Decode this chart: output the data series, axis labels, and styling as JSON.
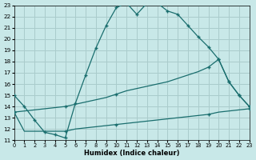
{
  "xlabel": "Humidex (Indice chaleur)",
  "bg_color": "#c8e8e8",
  "grid_color": "#aacccc",
  "line_color": "#1a6e6e",
  "xlim": [
    0,
    23
  ],
  "ylim": [
    11,
    23
  ],
  "xticks": [
    0,
    1,
    2,
    3,
    4,
    5,
    6,
    7,
    8,
    9,
    10,
    11,
    12,
    13,
    14,
    15,
    16,
    17,
    18,
    19,
    20,
    21,
    22,
    23
  ],
  "yticks": [
    11,
    12,
    13,
    14,
    15,
    16,
    17,
    18,
    19,
    20,
    21,
    22,
    23
  ],
  "line1_x": [
    0,
    1,
    2,
    3,
    4,
    5,
    6,
    7,
    8,
    9,
    10,
    11,
    12,
    13,
    14,
    15,
    16,
    17,
    18,
    19,
    20,
    21,
    22,
    23
  ],
  "line1_y": [
    15.0,
    14.0,
    12.8,
    11.7,
    11.5,
    11.2,
    14.3,
    16.8,
    19.2,
    21.2,
    22.8,
    23.2,
    22.2,
    23.2,
    23.2,
    22.5,
    22.2,
    21.2,
    20.2,
    19.3,
    18.2,
    16.2,
    15.0,
    14.0
  ],
  "line2_x": [
    0,
    1,
    2,
    3,
    4,
    5,
    6,
    7,
    8,
    9,
    10,
    11,
    12,
    13,
    14,
    15,
    16,
    17,
    18,
    19,
    20,
    21,
    22,
    23
  ],
  "line2_y": [
    13.5,
    13.6,
    13.7,
    13.8,
    13.9,
    14.0,
    14.2,
    14.4,
    14.6,
    14.8,
    15.1,
    15.4,
    15.6,
    15.8,
    16.0,
    16.2,
    16.5,
    16.8,
    17.1,
    17.5,
    18.2,
    16.2,
    15.0,
    14.0
  ],
  "line3_x": [
    0,
    1,
    2,
    3,
    4,
    5,
    6,
    7,
    8,
    9,
    10,
    11,
    12,
    13,
    14,
    15,
    16,
    17,
    18,
    19,
    20,
    21,
    22,
    23
  ],
  "line3_y": [
    13.5,
    11.8,
    11.8,
    11.8,
    11.8,
    11.8,
    12.0,
    12.1,
    12.2,
    12.3,
    12.4,
    12.5,
    12.6,
    12.7,
    12.8,
    12.9,
    13.0,
    13.1,
    13.2,
    13.3,
    13.5,
    13.6,
    13.7,
    13.8
  ],
  "line2_markers_x": [
    0,
    5,
    10,
    19,
    20,
    21,
    22,
    23
  ],
  "line2_markers_y": [
    13.5,
    14.0,
    15.1,
    17.5,
    18.2,
    16.2,
    15.0,
    14.0
  ],
  "line3_markers_x": [
    0,
    5,
    10,
    19,
    23
  ],
  "line3_markers_y": [
    13.5,
    11.8,
    12.4,
    13.3,
    13.8
  ]
}
